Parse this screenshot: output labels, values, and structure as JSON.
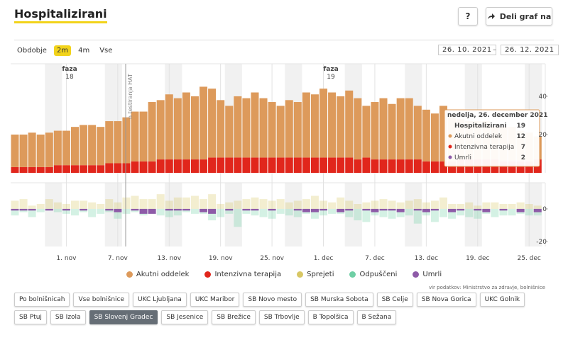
{
  "header": {
    "title": "Hospitalizirani",
    "help": "?",
    "share": "Deli graf na"
  },
  "period": {
    "label": "Obdobje",
    "options": [
      "2m",
      "4m",
      "Vse"
    ],
    "selected": 0
  },
  "date_range": {
    "from": "26. 10. 2021",
    "separator": "–",
    "to": "26. 12. 2021"
  },
  "chart_data": [
    {
      "type": "bar",
      "stacked": true,
      "series": [
        {
          "name": "Akutni oddelek",
          "color": "#dd9a5b",
          "values": [
            17,
            17,
            18,
            17,
            18,
            18,
            18,
            20,
            21,
            21,
            20,
            22,
            22,
            24,
            26,
            26,
            31,
            31,
            34,
            32,
            35,
            33,
            38,
            36,
            30,
            27,
            32,
            31,
            34,
            31,
            29,
            27,
            30,
            29,
            34,
            33,
            36,
            34,
            32,
            35,
            32,
            27,
            30,
            32,
            29,
            32,
            32,
            28,
            27,
            25,
            29,
            24,
            21,
            20,
            20,
            20,
            17,
            18,
            18,
            16,
            15,
            12
          ]
        },
        {
          "name": "Intenzivna terapija",
          "color": "#e1261c",
          "values": [
            3,
            3,
            3,
            3,
            3,
            4,
            4,
            4,
            4,
            4,
            4,
            5,
            5,
            5,
            6,
            6,
            6,
            7,
            7,
            7,
            7,
            7,
            7,
            8,
            8,
            8,
            8,
            8,
            8,
            8,
            8,
            8,
            8,
            8,
            8,
            8,
            8,
            8,
            8,
            8,
            7,
            8,
            7,
            7,
            7,
            7,
            7,
            7,
            6,
            6,
            6,
            6,
            7,
            7,
            7,
            7,
            7,
            6,
            6,
            6,
            6,
            7
          ]
        }
      ],
      "ylim": [
        0,
        57
      ],
      "yticks": [
        20,
        40
      ],
      "annotations": [
        {
          "label": "faza",
          "number": "18"
        },
        {
          "label": "faza",
          "number": "19"
        },
        {
          "label": "n testiranja HAT"
        }
      ],
      "tooltip": {
        "title": "nedelja, 26. december 2021",
        "total_label": "Hospitalizirani",
        "total": 19,
        "items": [
          {
            "label": "Akutni oddelek",
            "value": 12,
            "color": "#dd9a5b"
          },
          {
            "label": "Intenzivna terapija",
            "value": 7,
            "color": "#e1261c"
          },
          {
            "label": "Umrli",
            "value": 2,
            "color": "#8e5ba8"
          }
        ]
      }
    },
    {
      "type": "bar",
      "stacked": false,
      "categories": [
        null,
        null,
        null,
        null,
        null,
        null,
        "1. nov",
        null,
        null,
        null,
        null,
        null,
        "7. nov",
        null,
        null,
        null,
        null,
        null,
        "13. nov",
        null,
        null,
        null,
        null,
        null,
        "19. nov",
        null,
        null,
        null,
        null,
        null,
        "25. nov",
        null,
        null,
        null,
        null,
        null,
        "1. dec",
        null,
        null,
        null,
        null,
        null,
        "7. dec",
        null,
        null,
        null,
        null,
        null,
        "13. dec",
        null,
        null,
        null,
        null,
        null,
        "19. dec",
        null,
        null,
        null,
        null,
        null,
        "25. dec",
        null
      ],
      "series": [
        {
          "name": "Sprejeti",
          "color": "#d8c764",
          "opacity": 0.3,
          "values": [
            5,
            6,
            2,
            3,
            6,
            4,
            3,
            5,
            5,
            4,
            3,
            6,
            4,
            7,
            8,
            6,
            6,
            9,
            5,
            7,
            7,
            8,
            6,
            9,
            3,
            4,
            5,
            6,
            7,
            6,
            5,
            6,
            4,
            5,
            6,
            8,
            5,
            4,
            7,
            5,
            3,
            4,
            5,
            6,
            5,
            4,
            5,
            6,
            4,
            5,
            7,
            3,
            3,
            4,
            2,
            4,
            4,
            3,
            3,
            4,
            3,
            2
          ]
        },
        {
          "name": "Odpuščeni",
          "color": "#6fcfa5",
          "opacity": 0.3,
          "values": [
            -4,
            -2,
            -5,
            -2,
            -1,
            -2,
            -3,
            -4,
            -2,
            -5,
            -3,
            -2,
            -6,
            -3,
            -2,
            -4,
            -3,
            -4,
            -5,
            -4,
            -2,
            -3,
            -3,
            -7,
            -5,
            -3,
            -11,
            -3,
            -4,
            -5,
            -6,
            -3,
            -4,
            -5,
            -3,
            -6,
            -4,
            -3,
            -3,
            -5,
            -7,
            -8,
            -4,
            -5,
            -6,
            -5,
            -4,
            -9,
            -4,
            -8,
            -5,
            -6,
            -4,
            -5,
            -6,
            -3,
            -5,
            -4,
            -4,
            -3,
            -4,
            -4
          ]
        },
        {
          "name": "Umrli",
          "color": "#8e5ba8",
          "opacity": 1,
          "values": [
            -1,
            -1,
            -1,
            0,
            -1,
            0,
            -1,
            0,
            -1,
            0,
            0,
            -1,
            -2,
            0,
            -1,
            -3,
            -3,
            0,
            -1,
            -1,
            -1,
            0,
            -2,
            -3,
            0,
            -1,
            0,
            -1,
            -1,
            0,
            -1,
            0,
            0,
            -1,
            -2,
            -2,
            -1,
            0,
            -2,
            -1,
            0,
            -1,
            -2,
            -1,
            -1,
            -2,
            0,
            -1,
            -2,
            -1,
            0,
            -2,
            -1,
            0,
            -1,
            -2,
            0,
            -1,
            0,
            -2,
            0,
            -2
          ]
        }
      ],
      "ylim": [
        -23,
        16
      ],
      "yticks": [
        0,
        -20
      ]
    }
  ],
  "source": "vir podatkov: Ministrstvo za zdravje, bolnišnice",
  "hospitals": {
    "options": [
      "Po bolnišnicah",
      "Vse bolnišnice",
      "UKC Ljubljana",
      "UKC Maribor",
      "SB Novo mesto",
      "SB Murska Sobota",
      "SB Celje",
      "SB Nova Gorica",
      "UKC Golnik",
      "SB Ptuj",
      "SB Izola",
      "SB Slovenj Gradec",
      "SB Jesenice",
      "SB Brežice",
      "SB Trbovlje",
      "B Topolšica",
      "B Sežana"
    ],
    "selected": 11
  }
}
